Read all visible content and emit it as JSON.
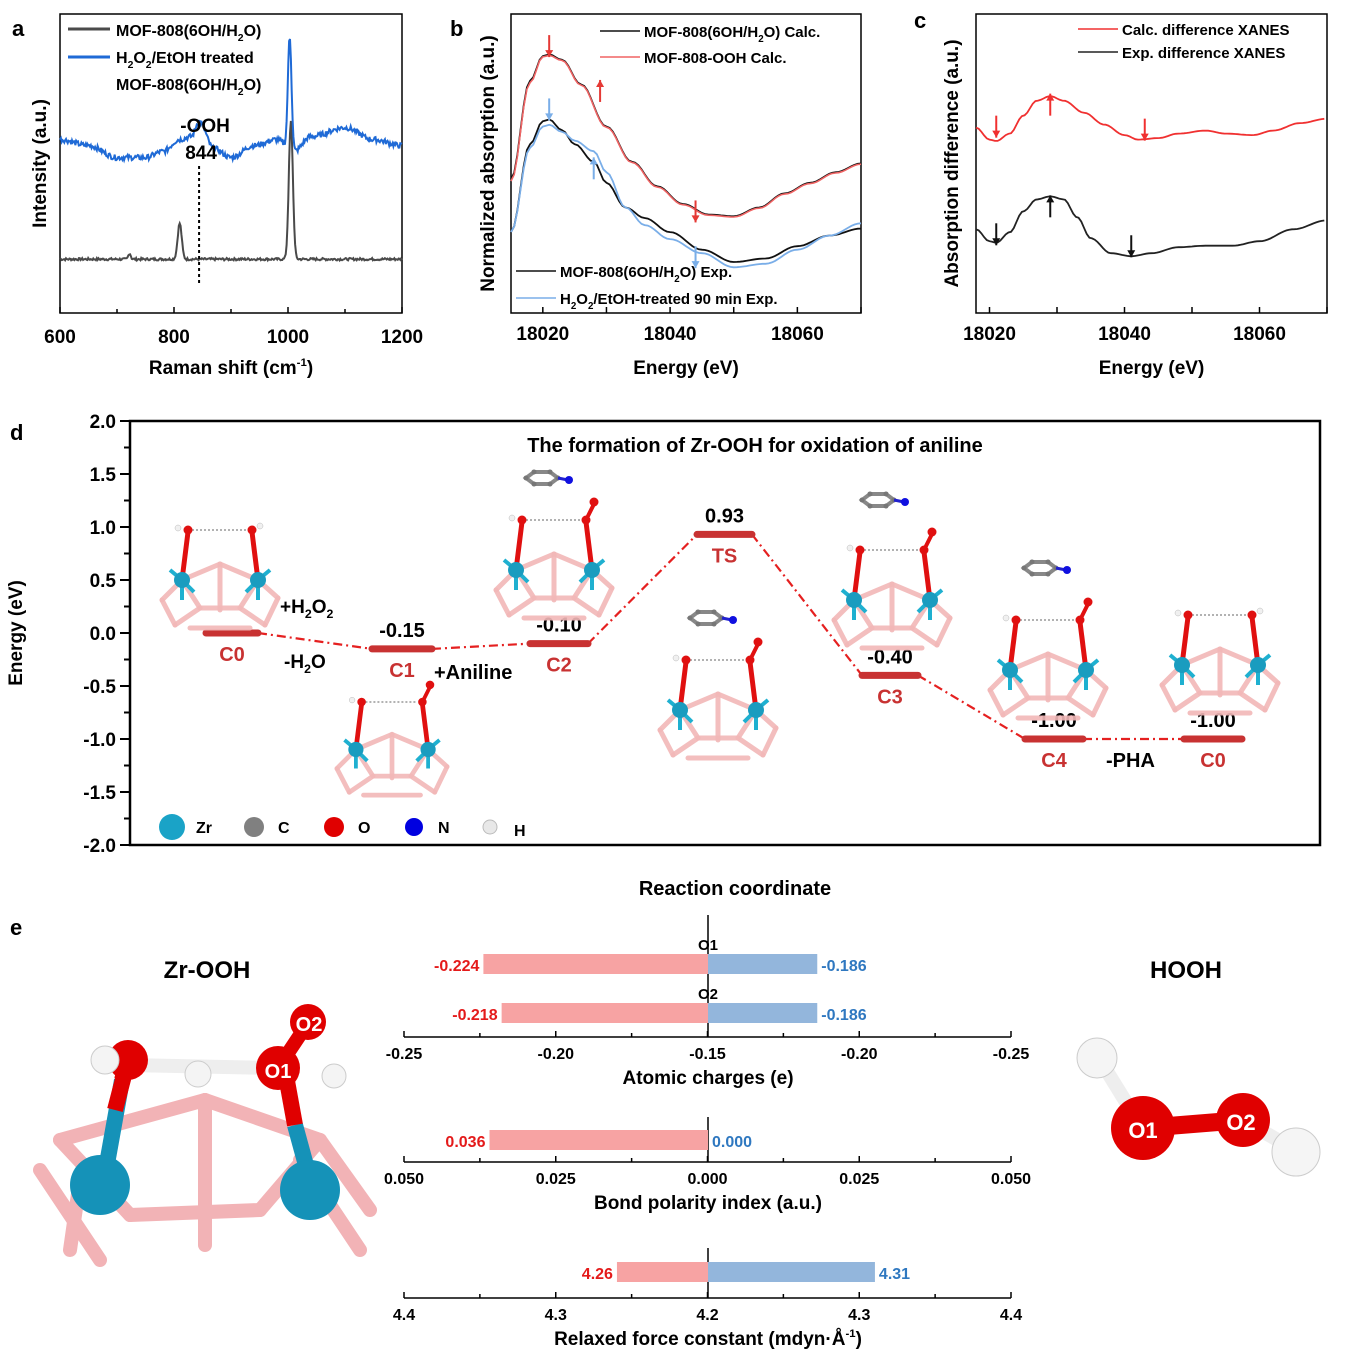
{
  "chart_data": [
    {
      "panel": "a",
      "type": "line",
      "xlabel": "Raman shift (cm⁻¹)",
      "ylabel": "Intensity (a.u.)",
      "xlim": [
        600,
        1200
      ],
      "xticks": [
        "600",
        "800",
        "1000",
        "1200"
      ],
      "yticks": [],
      "legend": {
        "placement": "top-left",
        "entries": [
          "MOF-808(6OH/H₂O)",
          "H₂O₂/EtOH treated",
          "MOF-808(6OH/H₂O)"
        ]
      },
      "annotation": {
        "label": "-OOH",
        "value": "844",
        "x": 844
      },
      "series": [
        {
          "name": "MOF-808(6OH/H2O)",
          "color": "#4a4a4a",
          "offset": 0.18,
          "baseline": 0.0,
          "peaks": [
            {
              "x": 722,
              "h": 0.02,
              "w": 3
            },
            {
              "x": 810,
              "h": 0.12,
              "w": 5
            },
            {
              "x": 1005,
              "h": 0.46,
              "w": 5
            }
          ]
        },
        {
          "name": "H2O2/EtOH treated MOF-808(6OH/H2O)",
          "color": "#1f6ad6",
          "offset": 0.52,
          "baseline_pts": [
            [
              600,
              0.06
            ],
            [
              650,
              0.04
            ],
            [
              700,
              0.0
            ],
            [
              750,
              0.0
            ],
            [
              780,
              0.02
            ],
            [
              810,
              0.06
            ],
            [
              830,
              0.07
            ],
            [
              844,
              0.12
            ],
            [
              870,
              0.03
            ],
            [
              900,
              0.0
            ],
            [
              940,
              0.04
            ],
            [
              980,
              0.06
            ],
            [
              1010,
              0.02
            ],
            [
              1040,
              0.07
            ],
            [
              1100,
              0.1
            ],
            [
              1150,
              0.06
            ],
            [
              1200,
              0.04
            ]
          ],
          "peaks": [
            {
              "x": 1003,
              "h": 0.38,
              "w": 4.5
            }
          ]
        }
      ]
    },
    {
      "panel": "b",
      "type": "line",
      "xlabel": "Energy (eV)",
      "ylabel": "Normalized absorption (a.u.)",
      "xlim": [
        18015,
        18070
      ],
      "xticks": [
        "18020",
        "18040",
        "18060"
      ],
      "legend_top": {
        "placement": "top-right",
        "entries": [
          "MOF-808(6OH/H₂O) Calc.",
          "MOF-808-OOH Calc."
        ]
      },
      "legend_bottom": {
        "placement": "bottom-left",
        "entries": [
          "MOF-808(6OH/H₂O)  Exp.",
          "H₂O₂/EtOH-treated 90 min Exp."
        ]
      },
      "series": [
        {
          "name": "MOF-808(6OH/H2O) Calc.",
          "color": "#111111",
          "points": [
            [
              18015,
              0.58
            ],
            [
              18018,
              0.86
            ],
            [
              18020,
              0.93
            ],
            [
              18021,
              0.935
            ],
            [
              18023,
              0.92
            ],
            [
              18026,
              0.85
            ],
            [
              18030,
              0.73
            ],
            [
              18034,
              0.63
            ],
            [
              18038,
              0.56
            ],
            [
              18042,
              0.51
            ],
            [
              18046,
              0.48
            ],
            [
              18050,
              0.475
            ],
            [
              18054,
              0.5
            ],
            [
              18058,
              0.54
            ],
            [
              18062,
              0.57
            ],
            [
              18066,
              0.6
            ],
            [
              18070,
              0.625
            ]
          ]
        },
        {
          "name": "MOF-808-OOH Calc.",
          "color": "#f06464",
          "points": [
            [
              18015,
              0.575
            ],
            [
              18018,
              0.855
            ],
            [
              18020,
              0.928
            ],
            [
              18021,
              0.932
            ],
            [
              18023,
              0.918
            ],
            [
              18026,
              0.848
            ],
            [
              18030,
              0.728
            ],
            [
              18034,
              0.628
            ],
            [
              18038,
              0.558
            ],
            [
              18042,
              0.508
            ],
            [
              18046,
              0.478
            ],
            [
              18050,
              0.473
            ],
            [
              18054,
              0.498
            ],
            [
              18058,
              0.538
            ],
            [
              18062,
              0.568
            ],
            [
              18066,
              0.598
            ],
            [
              18070,
              0.623
            ]
          ]
        },
        {
          "name": "MOF-808(6OH/H2O) Exp.",
          "color": "#111111",
          "points": [
            [
              18015,
              0.43
            ],
            [
              18018,
              0.68
            ],
            [
              18020,
              0.745
            ],
            [
              18021,
              0.75
            ],
            [
              18023,
              0.72
            ],
            [
              18025,
              0.68
            ],
            [
              18028,
              0.63
            ],
            [
              18030,
              0.57
            ],
            [
              18033,
              0.5
            ],
            [
              18036,
              0.47
            ],
            [
              18040,
              0.43
            ],
            [
              18045,
              0.38
            ],
            [
              18050,
              0.345
            ],
            [
              18055,
              0.355
            ],
            [
              18060,
              0.39
            ],
            [
              18065,
              0.42
            ],
            [
              18070,
              0.44
            ]
          ]
        },
        {
          "name": "H2O2/EtOH-treated 90 min Exp.",
          "color": "#7aaee8",
          "points": [
            [
              18015,
              0.43
            ],
            [
              18018,
              0.67
            ],
            [
              18020,
              0.73
            ],
            [
              18021,
              0.735
            ],
            [
              18023,
              0.715
            ],
            [
              18025,
              0.69
            ],
            [
              18028,
              0.66
            ],
            [
              18030,
              0.6
            ],
            [
              18033,
              0.5
            ],
            [
              18036,
              0.45
            ],
            [
              18040,
              0.41
            ],
            [
              18045,
              0.37
            ],
            [
              18050,
              0.33
            ],
            [
              18055,
              0.34
            ],
            [
              18060,
              0.38
            ],
            [
              18065,
              0.42
            ],
            [
              18070,
              0.455
            ]
          ]
        }
      ],
      "arrows": [
        {
          "x": 18021,
          "y": 0.99,
          "dir": "down",
          "color": "#e53935"
        },
        {
          "x": 18029,
          "y": 0.8,
          "dir": "up",
          "color": "#e53935"
        },
        {
          "x": 18044,
          "y": 0.52,
          "dir": "down",
          "color": "#e53935"
        },
        {
          "x": 18021,
          "y": 0.81,
          "dir": "down",
          "color": "#7aaee8"
        },
        {
          "x": 18028,
          "y": 0.58,
          "dir": "up",
          "color": "#7aaee8"
        },
        {
          "x": 18044,
          "y": 0.39,
          "dir": "down",
          "color": "#7aaee8"
        }
      ]
    },
    {
      "panel": "c",
      "type": "line",
      "xlabel": "Energy (eV)",
      "ylabel": "Absorption difference (a.u.)",
      "xlim": [
        18018,
        18070
      ],
      "xticks": [
        "18020",
        "18040",
        "18060"
      ],
      "legend": {
        "placement": "top-right",
        "entries": [
          "Calc. difference XANES",
          "Exp.  difference XANES"
        ]
      },
      "series": [
        {
          "name": "Calc. difference XANES",
          "color": "#f03030",
          "points": [
            [
              18018,
              0.62
            ],
            [
              18020,
              0.58
            ],
            [
              18021,
              0.575
            ],
            [
              18023,
              0.6
            ],
            [
              18025,
              0.66
            ],
            [
              18027,
              0.71
            ],
            [
              18029,
              0.725
            ],
            [
              18031,
              0.71
            ],
            [
              18034,
              0.67
            ],
            [
              18037,
              0.63
            ],
            [
              18040,
              0.595
            ],
            [
              18042,
              0.58
            ],
            [
              18045,
              0.585
            ],
            [
              18048,
              0.6
            ],
            [
              18052,
              0.61
            ],
            [
              18055,
              0.6
            ],
            [
              18059,
              0.595
            ],
            [
              18062,
              0.61
            ],
            [
              18066,
              0.635
            ],
            [
              18070,
              0.65
            ]
          ]
        },
        {
          "name": "Exp. difference XANES",
          "color": "#222222",
          "points": [
            [
              18018,
              0.28
            ],
            [
              18020,
              0.24
            ],
            [
              18021,
              0.235
            ],
            [
              18023,
              0.27
            ],
            [
              18025,
              0.34
            ],
            [
              18027,
              0.38
            ],
            [
              18029,
              0.39
            ],
            [
              18031,
              0.38
            ],
            [
              18033,
              0.32
            ],
            [
              18035,
              0.25
            ],
            [
              18038,
              0.2
            ],
            [
              18041,
              0.19
            ],
            [
              18044,
              0.2
            ],
            [
              18048,
              0.22
            ],
            [
              18052,
              0.225
            ],
            [
              18056,
              0.225
            ],
            [
              18060,
              0.24
            ],
            [
              18065,
              0.28
            ],
            [
              18070,
              0.31
            ]
          ]
        }
      ],
      "arrows": [
        {
          "x": 18021,
          "y": 0.66,
          "dir": "down",
          "color": "#f03030"
        },
        {
          "x": 18029,
          "y": 0.66,
          "dir": "up",
          "color": "#f03030"
        },
        {
          "x": 18043,
          "y": 0.65,
          "dir": "down",
          "color": "#f03030"
        },
        {
          "x": 18021,
          "y": 0.3,
          "dir": "down",
          "color": "#111111"
        },
        {
          "x": 18029,
          "y": 0.32,
          "dir": "up",
          "color": "#111111"
        },
        {
          "x": 18041,
          "y": 0.26,
          "dir": "down",
          "color": "#111111"
        }
      ]
    },
    {
      "panel": "d",
      "type": "line",
      "title": "The formation of Zr-OOH for oxidation of aniline",
      "xlabel": "Reaction coordinate",
      "ylabel": "Energy (eV)",
      "ylim": [
        -2.0,
        2.0
      ],
      "yticks": [
        "2.0",
        "1.5",
        "1.0",
        "0.5",
        "0.0",
        "-0.5",
        "-1.0",
        "-1.5",
        "-2.0"
      ],
      "states": [
        {
          "name": "C0",
          "energy": 0.0,
          "value_label": ""
        },
        {
          "name": "C1",
          "energy": -0.15,
          "value_label": "-0.15"
        },
        {
          "name": "C2",
          "energy": -0.1,
          "value_label": "-0.10"
        },
        {
          "name": "TS",
          "energy": 0.93,
          "value_label": "0.93"
        },
        {
          "name": "C3",
          "energy": -0.4,
          "value_label": "-0.40"
        },
        {
          "name": "C4",
          "energy": -1.0,
          "value_label": "-1.00"
        },
        {
          "name": "C0",
          "energy": -1.0,
          "value_label": "-1.00"
        }
      ],
      "step_labels": [
        {
          "text_main": "+H",
          "sub1": "2",
          "mid": "O",
          "sub2": "2"
        },
        {
          "text_main": "-H",
          "sub1": "2",
          "mid": "O",
          "sub2": ""
        },
        {
          "text_main": "+Aniline",
          "sub1": "",
          "mid": "",
          "sub2": ""
        },
        {
          "text_main": "-PHA",
          "sub1": "",
          "mid": "",
          "sub2": ""
        }
      ],
      "legend": {
        "placement": "bottom-left",
        "entries": [
          {
            "label": "Zr",
            "color": "#1aa3c7"
          },
          {
            "label": "C",
            "color": "#808080"
          },
          {
            "label": "O",
            "color": "#e00000"
          },
          {
            "label": "N",
            "color": "#0000e0"
          },
          {
            "label": "H",
            "color": "#e8e8e8"
          }
        ]
      },
      "colors": {
        "level": "#c83232",
        "path": "#e52020"
      }
    },
    {
      "panel": "e",
      "type": "bar",
      "left_title": "Zr-OOH",
      "right_title": "HOOH",
      "left_color": "#f7a3a3",
      "right_color": "#93b6dc",
      "left_text_color": "#e41a1a",
      "right_text_color": "#2f78c0",
      "subcharts": [
        {
          "xlabel": "Atomic charges (e)",
          "ticks": [
            "-0.25",
            "-0.20",
            "-0.15",
            "-0.20",
            "-0.25"
          ],
          "center": -0.15,
          "span": 0.1,
          "rows": [
            {
              "label": "O1",
              "left": -0.224,
              "left_label": "-0.224",
              "right": -0.186,
              "right_label": "-0.186"
            },
            {
              "label": "O2",
              "left": -0.218,
              "left_label": "-0.218",
              "right": -0.186,
              "right_label": "-0.186"
            }
          ]
        },
        {
          "xlabel": "Bond polarity index (a.u.)",
          "ticks": [
            "0.050",
            "0.025",
            "0.000",
            "0.025",
            "0.050"
          ],
          "center": 0.0,
          "span": 0.05,
          "rows": [
            {
              "label": "",
              "left": 0.036,
              "left_label": "0.036",
              "right": 0.0,
              "right_label": "0.000"
            }
          ]
        },
        {
          "xlabel": "Relaxed force constant (mdyn·Å⁻¹)",
          "ticks": [
            "4.4",
            "4.3",
            "4.2",
            "4.3",
            "4.4"
          ],
          "center": 4.2,
          "span": 0.2,
          "rows": [
            {
              "label": "",
              "left": 4.26,
              "left_label": "4.26",
              "right": 4.31,
              "right_label": "4.31"
            }
          ]
        }
      ],
      "atom_labels": {
        "zr_ooh": [
          "O1",
          "O2"
        ],
        "hooh": [
          "O1",
          "O2"
        ]
      }
    }
  ],
  "panel_letters": [
    "a",
    "b",
    "c",
    "d",
    "e"
  ]
}
